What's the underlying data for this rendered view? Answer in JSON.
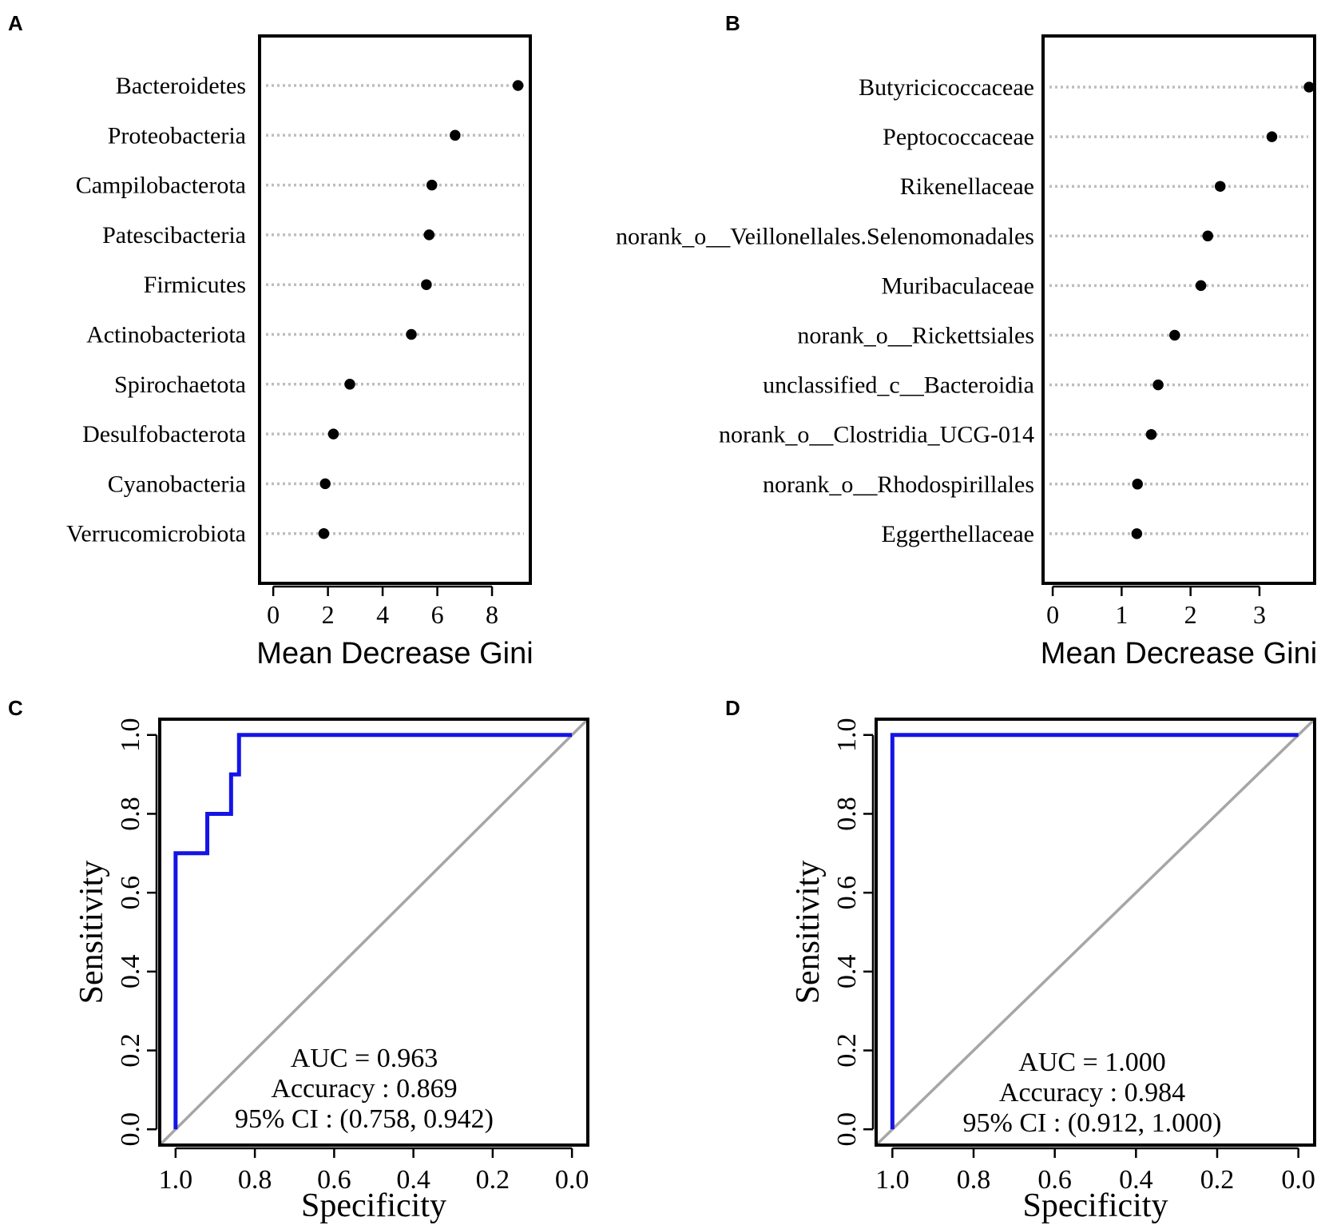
{
  "panels": {
    "A": {
      "letter": "A"
    },
    "B": {
      "letter": "B"
    },
    "C": {
      "letter": "C"
    },
    "D": {
      "letter": "D"
    }
  },
  "colors": {
    "roc_line": "#1414e6",
    "diagonal": "#a6a6a6",
    "dot": "#000000",
    "dotted_guide": "#bdbdbd",
    "frame": "#000000"
  },
  "chart_data": [
    {
      "id": "A",
      "type": "scatter",
      "subtype": "dotchart",
      "xlabel": "Mean Decrease Gini",
      "ylabel": "",
      "xlim": [
        -0.5,
        9.4
      ],
      "xticks": [
        0,
        2,
        4,
        6,
        8
      ],
      "categories": [
        "Bacteroidetes",
        "Proteobacteria",
        "Campilobacterota",
        "Patescibacteria",
        "Firmicutes",
        "Actinobacteriota",
        "Spirochaetota",
        "Desulfobacterota",
        "Cyanobacteria",
        "Verrucomicrobiota"
      ],
      "values": [
        8.95,
        6.65,
        5.8,
        5.7,
        5.6,
        5.05,
        2.8,
        2.2,
        1.9,
        1.85
      ]
    },
    {
      "id": "B",
      "type": "scatter",
      "subtype": "dotchart",
      "xlabel": "Mean Decrease Gini",
      "ylabel": "",
      "xlim": [
        -0.14,
        3.8
      ],
      "xticks": [
        0,
        1,
        2,
        3
      ],
      "categories": [
        "Butyricicoccaceae",
        "Peptococcaceae",
        "Rikenellaceae",
        "norank_o__Veillonellales.Selenomonadales",
        "Muribaculaceae",
        "norank_o__Rickettsiales",
        "unclassified_c__Bacteroidia",
        "norank_o__Clostridia_UCG-014",
        "norank_o__Rhodospirillales",
        "Eggerthellaceae"
      ],
      "values": [
        3.72,
        3.18,
        2.43,
        2.25,
        2.15,
        1.77,
        1.53,
        1.43,
        1.23,
        1.22
      ]
    },
    {
      "id": "C",
      "type": "line",
      "subtype": "roc",
      "xlabel": "Specificity",
      "ylabel": "Sensitivity",
      "xlim": [
        1.04,
        -0.04
      ],
      "ylim": [
        -0.04,
        1.04
      ],
      "xticks": [
        "1.0",
        "0.8",
        "0.6",
        "0.4",
        "0.2",
        "0.0"
      ],
      "yticks": [
        "0.0",
        "0.2",
        "0.4",
        "0.6",
        "0.8",
        "1.0"
      ],
      "series": [
        {
          "name": "ROC",
          "x": [
            1.0,
            1.0,
            0.92,
            0.92,
            0.86,
            0.86,
            0.84,
            0.84,
            0.0
          ],
          "y": [
            0.0,
            0.7,
            0.7,
            0.8,
            0.8,
            0.9,
            0.9,
            1.0,
            1.0
          ]
        }
      ],
      "annotations": [
        "AUC = 0.963",
        "Accuracy : 0.869",
        "95% CI : (0.758, 0.942)"
      ]
    },
    {
      "id": "D",
      "type": "line",
      "subtype": "roc",
      "xlabel": "Specificity",
      "ylabel": "Sensitivity",
      "xlim": [
        1.04,
        -0.04
      ],
      "ylim": [
        -0.04,
        1.04
      ],
      "xticks": [
        "1.0",
        "0.8",
        "0.6",
        "0.4",
        "0.2",
        "0.0"
      ],
      "yticks": [
        "0.0",
        "0.2",
        "0.4",
        "0.6",
        "0.8",
        "1.0"
      ],
      "series": [
        {
          "name": "ROC",
          "x": [
            1.0,
            1.0,
            0.0
          ],
          "y": [
            0.0,
            1.0,
            1.0
          ]
        }
      ],
      "annotations": [
        "AUC = 1.000",
        "Accuracy : 0.984",
        "95% CI : (0.912, 1.000)"
      ]
    }
  ]
}
